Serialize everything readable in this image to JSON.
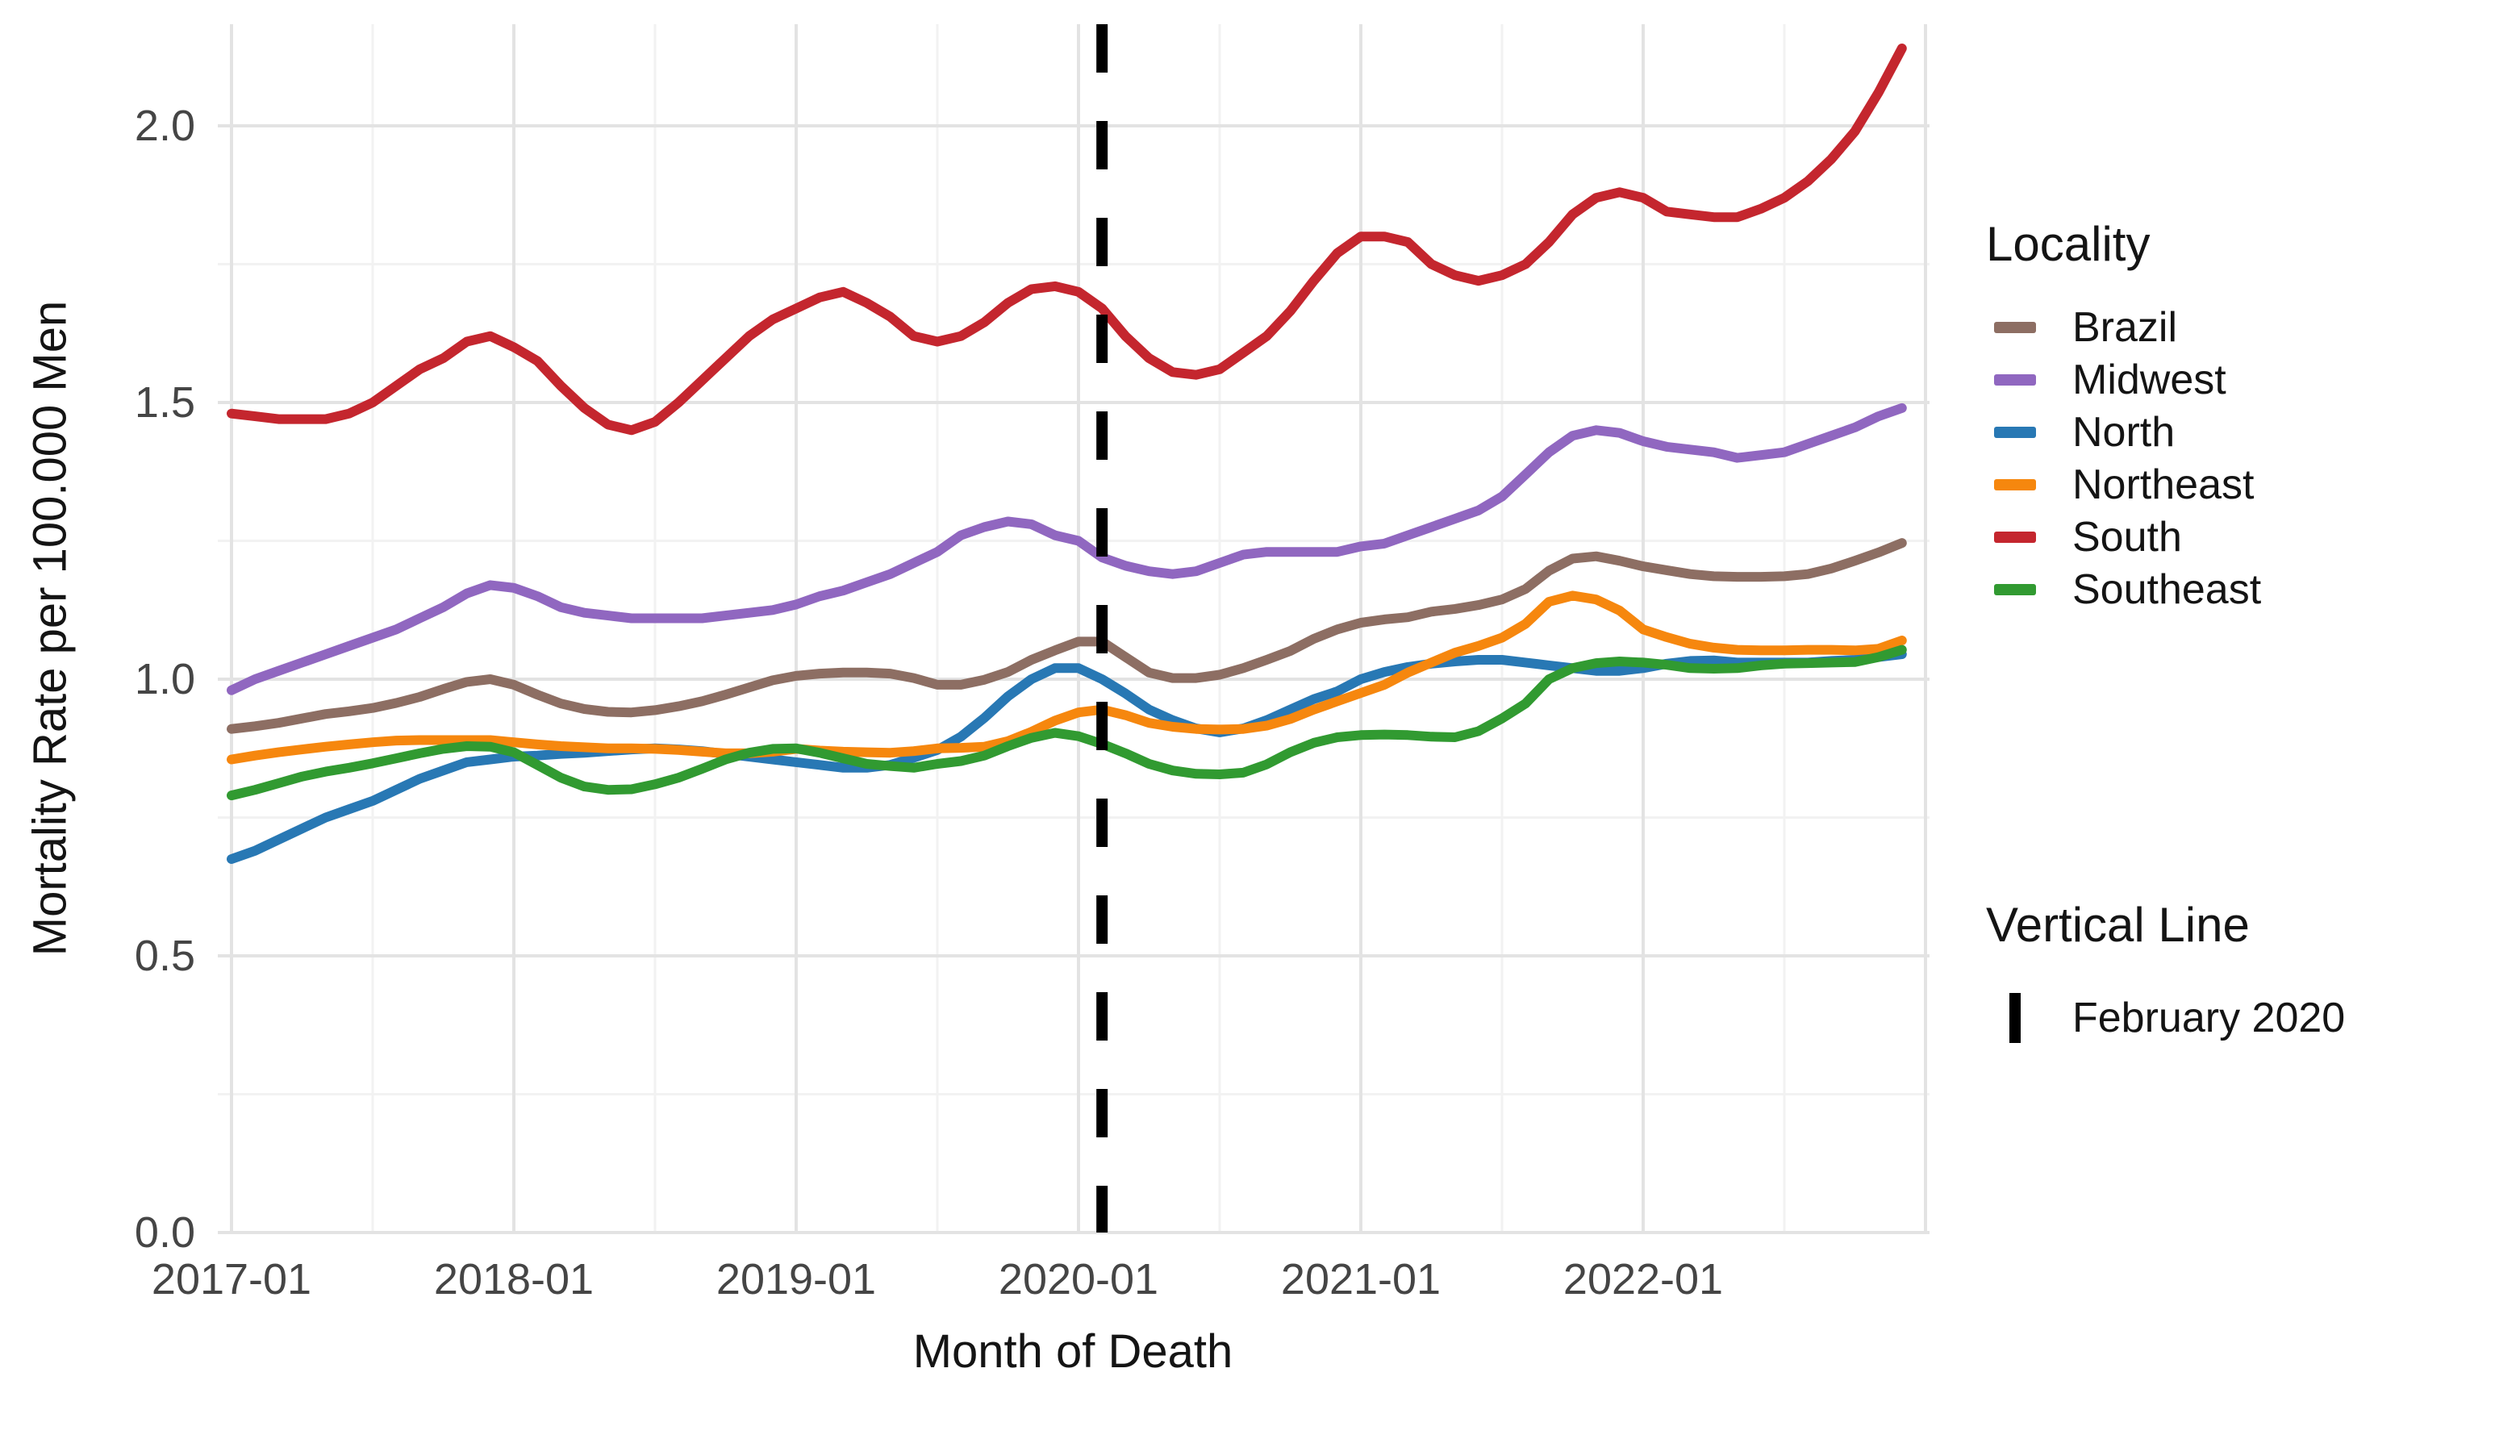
{
  "chart_data": {
    "type": "line",
    "title": "",
    "xlabel": "Month of Death",
    "ylabel": "Mortality Rate per 100.000 Men",
    "legend_title": "Locality",
    "vline_legend_title": "Vertical Line",
    "vline_label": "February 2020",
    "vline_month": "2020-02",
    "vline_month_index": 37,
    "vline_color": "#000000",
    "x_start": "2017-01",
    "x_end": "2022-12",
    "x_tick_labels": [
      "2017-01",
      "2018-01",
      "2019-01",
      "2020-01",
      "2021-01",
      "2022-01"
    ],
    "x_tick_month_indices": [
      0,
      12,
      24,
      36,
      48,
      60
    ],
    "y_tick_labels": [
      "0.0",
      "0.5",
      "1.0",
      "1.5",
      "2.0"
    ],
    "y_ticks": [
      0.0,
      0.5,
      1.0,
      1.5,
      2.0
    ],
    "ylim": [
      0.0,
      2.18
    ],
    "grid": true,
    "legend_position": "right",
    "grid_major_color": "#e3e3e3",
    "grid_minor_color": "#f2f2f2",
    "tick_label_color": "#454545",
    "series": [
      {
        "name": "Brazil",
        "color": "#8d6e63",
        "values": [
          0.91,
          0.915,
          0.921,
          0.929,
          0.937,
          0.942,
          0.948,
          0.957,
          0.968,
          0.982,
          0.995,
          1.0,
          0.99,
          0.972,
          0.956,
          0.946,
          0.941,
          0.94,
          0.944,
          0.951,
          0.96,
          0.972,
          0.985,
          0.998,
          1.006,
          1.01,
          1.012,
          1.012,
          1.01,
          1.002,
          0.99,
          0.99,
          0.999,
          1.013,
          1.035,
          1.052,
          1.068,
          1.068,
          1.04,
          1.012,
          1.002,
          1.002,
          1.008,
          1.02,
          1.035,
          1.051,
          1.073,
          1.09,
          1.102,
          1.108,
          1.112,
          1.122,
          1.127,
          1.134,
          1.144,
          1.163,
          1.196,
          1.218,
          1.222,
          1.214,
          1.204,
          1.197,
          1.19,
          1.186,
          1.185,
          1.185,
          1.186,
          1.19,
          1.2,
          1.214,
          1.229,
          1.246
        ]
      },
      {
        "name": "Midwest",
        "color": "#9067c0",
        "values": [
          0.98,
          1.0,
          1.015,
          1.03,
          1.045,
          1.06,
          1.075,
          1.09,
          1.11,
          1.13,
          1.155,
          1.17,
          1.165,
          1.15,
          1.13,
          1.12,
          1.115,
          1.11,
          1.11,
          1.11,
          1.11,
          1.115,
          1.12,
          1.125,
          1.135,
          1.15,
          1.16,
          1.175,
          1.19,
          1.21,
          1.23,
          1.26,
          1.275,
          1.285,
          1.28,
          1.26,
          1.25,
          1.22,
          1.205,
          1.195,
          1.19,
          1.195,
          1.21,
          1.225,
          1.23,
          1.23,
          1.23,
          1.23,
          1.24,
          1.245,
          1.26,
          1.275,
          1.29,
          1.305,
          1.33,
          1.37,
          1.41,
          1.44,
          1.45,
          1.445,
          1.43,
          1.42,
          1.415,
          1.41,
          1.4,
          1.405,
          1.41,
          1.425,
          1.44,
          1.455,
          1.475,
          1.49
        ]
      },
      {
        "name": "North",
        "color": "#2878b4",
        "values": [
          0.675,
          0.69,
          0.71,
          0.73,
          0.75,
          0.765,
          0.78,
          0.8,
          0.82,
          0.835,
          0.85,
          0.855,
          0.86,
          0.862,
          0.865,
          0.867,
          0.87,
          0.873,
          0.875,
          0.873,
          0.87,
          0.865,
          0.86,
          0.855,
          0.85,
          0.845,
          0.84,
          0.84,
          0.845,
          0.858,
          0.872,
          0.896,
          0.93,
          0.969,
          1.0,
          1.02,
          1.02,
          1.0,
          0.974,
          0.945,
          0.926,
          0.911,
          0.904,
          0.911,
          0.926,
          0.945,
          0.964,
          0.978,
          1.0,
          1.013,
          1.022,
          1.028,
          1.032,
          1.035,
          1.035,
          1.03,
          1.025,
          1.02,
          1.015,
          1.015,
          1.02,
          1.028,
          1.033,
          1.034,
          1.03,
          1.03,
          1.03,
          1.03,
          1.033,
          1.035,
          1.04,
          1.045
        ]
      },
      {
        "name": "Northeast",
        "color": "#f6870e",
        "values": [
          0.855,
          0.862,
          0.868,
          0.873,
          0.878,
          0.882,
          0.886,
          0.889,
          0.89,
          0.89,
          0.89,
          0.89,
          0.886,
          0.882,
          0.879,
          0.877,
          0.875,
          0.875,
          0.874,
          0.872,
          0.869,
          0.866,
          0.866,
          0.869,
          0.874,
          0.871,
          0.869,
          0.868,
          0.867,
          0.87,
          0.875,
          0.876,
          0.878,
          0.888,
          0.905,
          0.925,
          0.94,
          0.945,
          0.935,
          0.921,
          0.914,
          0.91,
          0.909,
          0.91,
          0.916,
          0.928,
          0.945,
          0.96,
          0.975,
          0.99,
          1.012,
          1.03,
          1.048,
          1.06,
          1.075,
          1.1,
          1.14,
          1.151,
          1.144,
          1.124,
          1.09,
          1.076,
          1.064,
          1.057,
          1.053,
          1.052,
          1.052,
          1.053,
          1.053,
          1.052,
          1.055,
          1.07
        ]
      },
      {
        "name": "South",
        "color": "#c4262e",
        "values": [
          1.48,
          1.475,
          1.47,
          1.47,
          1.47,
          1.48,
          1.5,
          1.53,
          1.56,
          1.58,
          1.61,
          1.62,
          1.6,
          1.575,
          1.53,
          1.49,
          1.46,
          1.45,
          1.465,
          1.5,
          1.54,
          1.58,
          1.62,
          1.65,
          1.67,
          1.69,
          1.7,
          1.68,
          1.655,
          1.62,
          1.61,
          1.62,
          1.645,
          1.68,
          1.705,
          1.71,
          1.7,
          1.67,
          1.62,
          1.58,
          1.555,
          1.55,
          1.56,
          1.59,
          1.62,
          1.665,
          1.72,
          1.77,
          1.8,
          1.8,
          1.79,
          1.75,
          1.73,
          1.72,
          1.73,
          1.75,
          1.79,
          1.84,
          1.87,
          1.88,
          1.87,
          1.845,
          1.84,
          1.835,
          1.835,
          1.85,
          1.87,
          1.9,
          1.94,
          1.99,
          2.06,
          2.14
        ]
      },
      {
        "name": "Southeast",
        "color": "#319a31",
        "values": [
          0.79,
          0.8,
          0.812,
          0.824,
          0.833,
          0.84,
          0.848,
          0.857,
          0.866,
          0.874,
          0.879,
          0.878,
          0.868,
          0.845,
          0.822,
          0.806,
          0.8,
          0.801,
          0.81,
          0.822,
          0.838,
          0.855,
          0.867,
          0.874,
          0.875,
          0.867,
          0.857,
          0.847,
          0.843,
          0.84,
          0.847,
          0.852,
          0.862,
          0.879,
          0.894,
          0.903,
          0.897,
          0.883,
          0.866,
          0.847,
          0.835,
          0.829,
          0.828,
          0.831,
          0.846,
          0.868,
          0.885,
          0.895,
          0.899,
          0.9,
          0.899,
          0.896,
          0.895,
          0.906,
          0.929,
          0.956,
          1.0,
          1.02,
          1.029,
          1.032,
          1.03,
          1.026,
          1.02,
          1.019,
          1.02,
          1.025,
          1.028,
          1.029,
          1.03,
          1.031,
          1.04,
          1.053
        ]
      }
    ]
  }
}
